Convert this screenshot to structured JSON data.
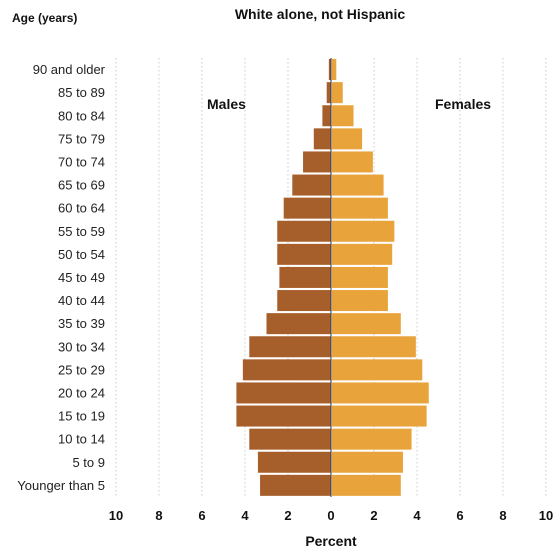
{
  "chart_data": {
    "type": "bar",
    "title": "White alone, not Hispanic",
    "yaxis_title": "Age (years)",
    "xlabel": "Percent",
    "xlim": [
      -10,
      10
    ],
    "x_ticks": [
      {
        "value": -10,
        "label": "10"
      },
      {
        "value": -8,
        "label": "8"
      },
      {
        "value": -6,
        "label": "6"
      },
      {
        "value": -4,
        "label": "4"
      },
      {
        "value": -2,
        "label": "2"
      },
      {
        "value": 0,
        "label": "0"
      },
      {
        "value": 2,
        "label": "2"
      },
      {
        "value": 4,
        "label": "4"
      },
      {
        "value": 6,
        "label": "6"
      },
      {
        "value": 8,
        "label": "8"
      },
      {
        "value": 10,
        "label": "10"
      }
    ],
    "categories": [
      "90 and older",
      "85 to 89",
      "80 to 84",
      "75 to 79",
      "70 to 74",
      "65 to 69",
      "60 to 64",
      "55 to 59",
      "50 to 54",
      "45 to 49",
      "40 to 44",
      "35 to 39",
      "30 to 34",
      "25 to 29",
      "20 to 24",
      "15 to 19",
      "10 to 14",
      "5 to 9",
      "Younger than 5"
    ],
    "series": [
      {
        "name": "Males",
        "color": "#a65e2a",
        "values": [
          0.1,
          0.2,
          0.4,
          0.8,
          1.3,
          1.8,
          2.2,
          2.5,
          2.5,
          2.4,
          2.5,
          3.0,
          3.8,
          4.1,
          4.4,
          4.4,
          3.8,
          3.4,
          3.3
        ]
      },
      {
        "name": "Females",
        "color": "#e8a33a",
        "values": [
          0.2,
          0.5,
          1.0,
          1.4,
          1.9,
          2.4,
          2.6,
          2.9,
          2.8,
          2.6,
          2.6,
          3.2,
          3.9,
          4.2,
          4.5,
          4.4,
          3.7,
          3.3,
          3.2
        ]
      }
    ],
    "grid": true
  }
}
